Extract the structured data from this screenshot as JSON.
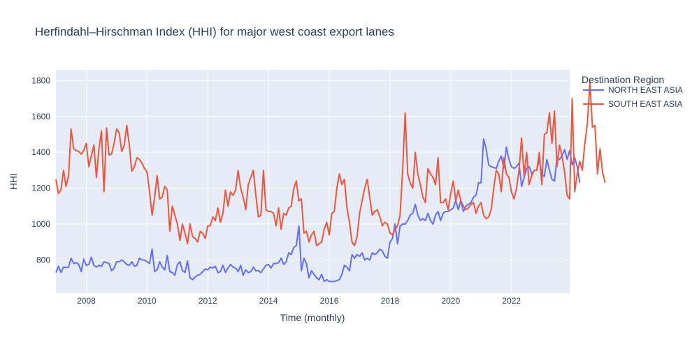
{
  "colors": {
    "plot_bg": "#e5ecf6",
    "grid": "#ffffff",
    "text": "#2a3f5f"
  },
  "chart_data": {
    "type": "line",
    "title": "Herfindahl–Hirschman Index (HHI) for major west coast export lanes",
    "xlabel": "Time (monthly)",
    "ylabel": "HHI",
    "legend_title": "Destination Region",
    "legend_position": "right",
    "grid": true,
    "xlim": [
      2007.0,
      2023.917
    ],
    "ylim": [
      615,
      1860
    ],
    "x_ticks": [
      2008,
      2010,
      2012,
      2014,
      2016,
      2018,
      2020,
      2022
    ],
    "x_tick_labels": [
      "2008",
      "2010",
      "2012",
      "2014",
      "2016",
      "2018",
      "2020",
      "2022"
    ],
    "y_ticks": [
      800,
      1000,
      1200,
      1400,
      1600,
      1800
    ],
    "y_tick_labels": [
      "800",
      "1000",
      "1200",
      "1400",
      "1600",
      "1800"
    ],
    "x_start": 2007.0,
    "x_step": 0.08333,
    "series": [
      {
        "name": "NORTH EAST ASIA",
        "color": "#636efa",
        "values": [
          730,
          765,
          730,
          760,
          758,
          760,
          810,
          780,
          785,
          775,
          735,
          805,
          770,
          775,
          815,
          770,
          760,
          770,
          765,
          790,
          785,
          780,
          740,
          755,
          790,
          790,
          800,
          790,
          775,
          770,
          790,
          765,
          770,
          810,
          800,
          800,
          790,
          780,
          860,
          735,
          745,
          790,
          760,
          745,
          825,
          735,
          730,
          715,
          775,
          790,
          740,
          730,
          795,
          700,
          690,
          705,
          715,
          720,
          735,
          750,
          745,
          760,
          755,
          765,
          730,
          735,
          770,
          730,
          755,
          775,
          760,
          755,
          735,
          770,
          715,
          745,
          730,
          735,
          760,
          740,
          740,
          730,
          750,
          770,
          775,
          755,
          780,
          780,
          785,
          810,
          775,
          790,
          840,
          830,
          870,
          880,
          990,
          740,
          810,
          780,
          700,
          740,
          720,
          700,
          690,
          720,
          680,
          690,
          680,
          680,
          680,
          685,
          690,
          720,
          770,
          760,
          740,
          830,
          810,
          830,
          820,
          840,
          800,
          810,
          800,
          840,
          830,
          840,
          860,
          850,
          820,
          810,
          900,
          920,
          1000,
          890,
          990,
          1000,
          1000,
          1020,
          1050,
          1060,
          1110,
          1050,
          1020,
          1030,
          1020,
          1060,
          1020,
          1000,
          1050,
          1070,
          1020,
          1060,
          1070,
          1070,
          1080,
          1090,
          1130,
          1080,
          1130,
          1070,
          1100,
          1110,
          1120,
          1150,
          1160,
          1230,
          1230,
          1475,
          1420,
          1330,
          1320,
          1315,
          1310,
          1350,
          1380,
          1310,
          1430,
          1360,
          1320,
          1310,
          1320,
          1340,
          1210,
          1260,
          1310,
          1320,
          1280,
          1300,
          1300,
          1360,
          1280,
          1265,
          1360,
          1300,
          1250,
          1240,
          1370,
          1360,
          1380,
          1415,
          1360,
          1410,
          1330,
          1370,
          1320,
          1230
        ]
      },
      {
        "name": "SOUTH EAST ASIA",
        "color": "#ef553b",
        "values": [
          1250,
          1170,
          1190,
          1300,
          1210,
          1270,
          1530,
          1420,
          1410,
          1405,
          1390,
          1410,
          1450,
          1320,
          1380,
          1440,
          1260,
          1420,
          1520,
          1180,
          1535,
          1385,
          1390,
          1450,
          1530,
          1510,
          1405,
          1440,
          1550,
          1440,
          1295,
          1320,
          1370,
          1360,
          1340,
          1310,
          1290,
          1180,
          1050,
          1150,
          1270,
          1140,
          1150,
          1210,
          1190,
          960,
          1100,
          1050,
          1000,
          910,
          1000,
          950,
          890,
          1000,
          930,
          920,
          900,
          960,
          950,
          920,
          990,
          990,
          1040,
          1020,
          1090,
          1010,
          1060,
          1190,
          1100,
          1180,
          1160,
          1190,
          1300,
          1200,
          1150,
          1080,
          1220,
          1260,
          1300,
          1160,
          1040,
          1050,
          1300,
          1080,
          1070,
          1070,
          1060,
          990,
          1090,
          970,
          1060,
          1050,
          1090,
          1100,
          1200,
          1240,
          1130,
          1140,
          950,
          960,
          900,
          940,
          960,
          880,
          890,
          900,
          970,
          1010,
          940,
          1060,
          1070,
          1200,
          1280,
          1220,
          1250,
          1090,
          1010,
          900,
          880,
          930,
          1060,
          1130,
          1200,
          1250,
          1150,
          1050,
          1070,
          1080,
          1040,
          990,
          1010,
          1000,
          950,
          940,
          970,
          990,
          1050,
          1300,
          1620,
          1280,
          1230,
          1200,
          1400,
          1280,
          1220,
          1150,
          1120,
          1310,
          1280,
          1260,
          1220,
          1370,
          1120,
          1120,
          1140,
          1080,
          1170,
          1240,
          1130,
          1190,
          1130,
          1100,
          1080,
          1090,
          1110,
          1120,
          1060,
          1100,
          1120,
          1050,
          1030,
          1040,
          1080,
          1200,
          1300,
          1280,
          1180,
          1370,
          1280,
          1260,
          1180,
          1140,
          1200,
          1300,
          1480,
          1270,
          1400,
          1220,
          1270,
          1300,
          1300,
          1400,
          1220,
          1500,
          1510,
          1620,
          1450,
          1630,
          1320,
          1440,
          1380,
          1290,
          1160,
          1140,
          1700,
          1180,
          1280,
          1350,
          1300,
          1450,
          1560,
          1790,
          1540,
          1550,
          1280,
          1420,
          1290,
          1230
        ]
      }
    ]
  }
}
